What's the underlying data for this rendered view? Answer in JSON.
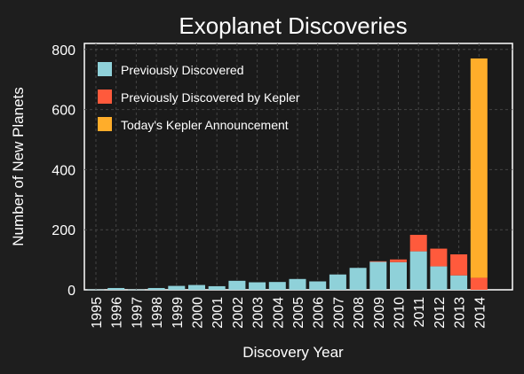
{
  "chart_data": {
    "type": "bar",
    "stacked": true,
    "title": "Exoplanet Discoveries",
    "xlabel": "Discovery Year",
    "ylabel": "Number of New Planets",
    "ylim": [
      0,
      820
    ],
    "yticks": [
      0,
      200,
      400,
      600,
      800
    ],
    "grid": true,
    "legend_position": "top-left",
    "categories": [
      "1995",
      "1996",
      "1997",
      "1998",
      "1999",
      "2000",
      "2001",
      "2002",
      "2003",
      "2004",
      "2005",
      "2006",
      "2007",
      "2008",
      "2009",
      "2010",
      "2011",
      "2012",
      "2013",
      "2014"
    ],
    "series": [
      {
        "name": "Previously Discovered",
        "color": "#8fd1d9",
        "values": [
          1,
          6,
          1,
          6,
          13,
          16,
          12,
          30,
          25,
          26,
          36,
          28,
          51,
          73,
          93,
          92,
          128,
          78,
          48,
          0
        ]
      },
      {
        "name": "Previously Discovered by Kepler",
        "color": "#ff5a3c",
        "values": [
          0,
          0,
          0,
          0,
          0,
          0,
          0,
          0,
          0,
          0,
          0,
          0,
          0,
          0,
          2,
          9,
          55,
          59,
          70,
          40
        ]
      },
      {
        "name": "Today's Kepler Announcement",
        "color": "#ffad2a",
        "values": [
          0,
          0,
          0,
          0,
          0,
          0,
          0,
          0,
          0,
          0,
          0,
          0,
          0,
          0,
          0,
          0,
          0,
          0,
          0,
          730
        ]
      }
    ]
  }
}
